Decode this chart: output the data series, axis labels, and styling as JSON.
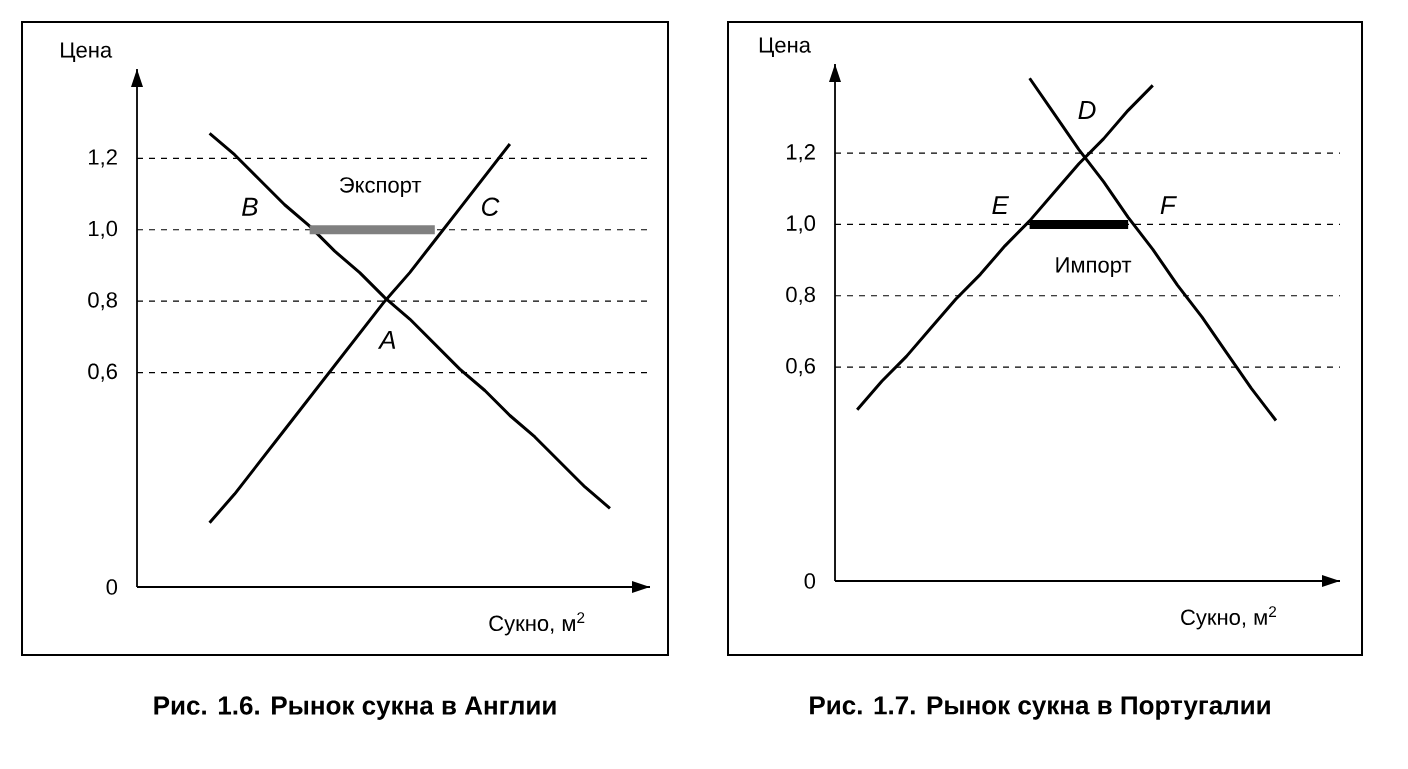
{
  "chart_data": [
    {
      "type": "line",
      "title": "Рис. 1.6. Рынок сукна в Англии",
      "xlabel": "Сукно, м$^{2}$",
      "ylabel": "Цена",
      "categories": [
        null,
        null,
        null,
        null,
        null,
        null,
        null,
        null,
        null,
        null,
        null,
        null,
        null,
        null,
        null,
        null,
        null,
        null,
        null
      ],
      "series": [
        {
          "color": "#000000",
          "values": [
            null,
            null,
            1.27,
            1.21,
            1.14,
            1.07,
            1.01,
            0.94,
            0.88,
            0.81,
            0.75,
            0.68,
            0.61,
            0.55,
            0.48,
            0.42,
            0.35,
            0.28,
            0.22
          ]
        },
        {
          "color": "#000000",
          "values": [
            null,
            null,
            0.18,
            0.26,
            0.35,
            0.44,
            0.53,
            0.62,
            0.71,
            0.8,
            0.88,
            0.97,
            1.06,
            1.15,
            1.24,
            null,
            null,
            null,
            null
          ]
        },
        {
          "color": "#808080",
          "values": [
            null,
            null,
            null,
            null,
            null,
            null,
            1.0,
            1.0,
            1.0,
            1.0,
            1.0,
            1.0,
            null,
            null,
            null,
            null,
            null,
            null,
            null
          ]
        }
      ],
      "ylim": [
        0,
        1.45
      ],
      "yticks": [
        0,
        {
          "value": 0.6,
          "label": "0,6"
        },
        {
          "value": 0.8,
          "label": "0,8"
        },
        {
          "value": 1.0,
          "label": "1,0"
        },
        {
          "value": 1.2,
          "label": "1,2"
        }
      ],
      "grid": "y",
      "annotations": [
        "Экспорт",
        "B",
        "C",
        "A"
      ]
    },
    {
      "type": "line",
      "title": "Рис. 1.7. Рынок сукна в Португалии",
      "xlabel": "Сукно, м$^{2}$",
      "ylabel": "Цена",
      "categories": [
        null,
        null,
        null,
        null,
        null,
        null,
        null,
        null,
        null,
        null,
        null,
        null,
        null,
        null,
        null,
        null,
        null,
        null,
        null
      ],
      "series": [
        {
          "color": "#000000",
          "values": [
            0.48,
            0.56,
            0.63,
            0.71,
            0.79,
            0.86,
            0.94,
            1.01,
            1.09,
            1.17,
            1.24,
            1.32,
            1.39,
            null,
            null,
            null,
            null,
            null,
            null
          ]
        },
        {
          "color": "#000000",
          "values": [
            null,
            null,
            null,
            null,
            null,
            null,
            null,
            1.41,
            1.31,
            1.21,
            1.12,
            1.02,
            0.93,
            0.83,
            0.74,
            0.64,
            0.54,
            0.45,
            null
          ]
        },
        {
          "color": "#000000",
          "values": [
            null,
            null,
            null,
            null,
            null,
            null,
            null,
            1.0,
            1.0,
            1.0,
            1.0,
            1.0,
            null,
            null,
            null,
            null,
            null,
            null,
            null
          ]
        }
      ],
      "ylim": [
        0,
        1.45
      ],
      "yticks": [
        0,
        {
          "value": 0.6,
          "label": "0,6"
        },
        {
          "value": 0.8,
          "label": "0,8"
        },
        {
          "value": 1.0,
          "label": "1,0"
        },
        {
          "value": 1.2,
          "label": "1,2"
        }
      ],
      "grid": "y",
      "annotations": [
        "D",
        "E",
        "F",
        "Импорт"
      ]
    }
  ]
}
